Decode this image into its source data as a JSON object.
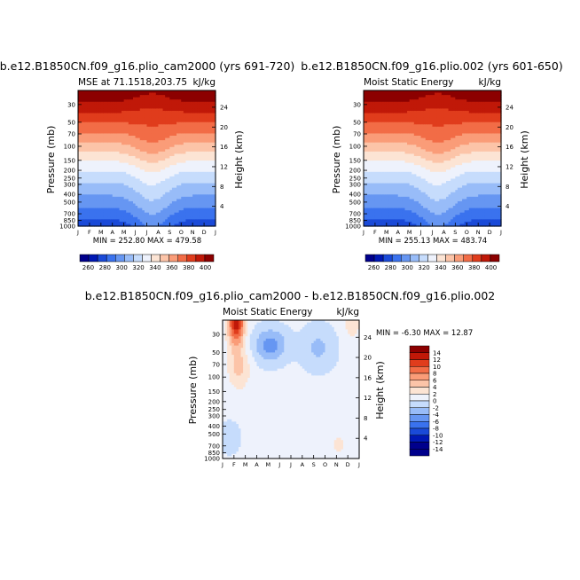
{
  "chart_data": [
    {
      "type": "heatmap",
      "title": "b.e12.B1850CN.f09_g16.plio_cam2000 (yrs 691-720)",
      "subtitle_left": "MSE at 71.1518,203.75",
      "units": "kJ/kg",
      "ylabel": "Pressure (mb)",
      "ylabel_right": "Height (km)",
      "xticks": [
        "J",
        "F",
        "M",
        "A",
        "M",
        "J",
        "J",
        "A",
        "S",
        "O",
        "N",
        "D",
        "J"
      ],
      "yticks": [
        30,
        50,
        70,
        100,
        150,
        200,
        250,
        300,
        400,
        500,
        700,
        850,
        1000
      ],
      "yticks_right": [
        4,
        8,
        12,
        16,
        20,
        24
      ],
      "ylim": [
        1000,
        20
      ],
      "stats": "MIN = 252.80  MAX = 479.58",
      "min": 252.8,
      "max": 479.58,
      "levels": [
        260,
        280,
        300,
        320,
        340,
        360,
        380,
        400
      ],
      "colorbar_labels": [
        "260",
        "280",
        "300",
        "320",
        "340",
        "360",
        "380",
        "400"
      ]
    },
    {
      "type": "heatmap",
      "title": "b.e12.B1850CN.f09_g16.plio.002 (yrs 601-650)",
      "subtitle_left": "Moist Static Energy",
      "units": "kJ/kg",
      "ylabel": "Pressure (mb)",
      "ylabel_right": "Height (km)",
      "xticks": [
        "J",
        "F",
        "M",
        "A",
        "M",
        "J",
        "J",
        "A",
        "S",
        "O",
        "N",
        "D",
        "J"
      ],
      "yticks": [
        30,
        50,
        70,
        100,
        150,
        200,
        250,
        300,
        400,
        500,
        700,
        850,
        1000
      ],
      "yticks_right": [
        4,
        8,
        12,
        16,
        20,
        24
      ],
      "ylim": [
        1000,
        20
      ],
      "stats": "MIN = 255.13  MAX = 483.74",
      "min": 255.13,
      "max": 483.74,
      "levels": [
        260,
        280,
        300,
        320,
        340,
        360,
        380,
        400
      ],
      "colorbar_labels": [
        "260",
        "280",
        "300",
        "320",
        "340",
        "360",
        "380",
        "400"
      ]
    },
    {
      "type": "heatmap",
      "title": "b.e12.B1850CN.f09_g16.plio_cam2000 - b.e12.B1850CN.f09_g16.plio.002",
      "subtitle_left": "Moist Static Energy",
      "units": "kJ/kg",
      "ylabel": "Pressure (mb)",
      "ylabel_right": "Height (km)",
      "xticks": [
        "J",
        "F",
        "M",
        "A",
        "M",
        "J",
        "J",
        "A",
        "S",
        "O",
        "N",
        "D",
        "J"
      ],
      "yticks": [
        30,
        50,
        70,
        100,
        150,
        200,
        250,
        300,
        400,
        500,
        700,
        850,
        1000
      ],
      "yticks_right": [
        4,
        8,
        12,
        16,
        20,
        24
      ],
      "ylim": [
        1000,
        20
      ],
      "stats": "MIN =  -6.30  MAX =  12.87",
      "min": -6.3,
      "max": 12.87,
      "levels": [
        -14,
        -12,
        -10,
        -8,
        -6,
        -4,
        -2,
        0,
        2,
        4,
        6,
        8,
        10,
        12,
        14
      ],
      "colorbar_labels": [
        "14",
        "12",
        "10",
        "8",
        "6",
        "4",
        "2",
        "0",
        "-2",
        "-4",
        "-6",
        "-8",
        "-10",
        "-12",
        "-14"
      ]
    }
  ],
  "colors": {
    "abs_fills": [
      "#00008c",
      "#0018b4",
      "#1a4ad8",
      "#3a72ee",
      "#6696f2",
      "#98bcf8",
      "#c6dcfc",
      "#eef2fc",
      "#fce4d4",
      "#fcc4a8",
      "#fa9c78",
      "#f26c46",
      "#e03c1c",
      "#c01808",
      "#8c0000"
    ],
    "diff_fills": [
      "#00008c",
      "#0018b4",
      "#1a4ad8",
      "#3a72ee",
      "#6696f2",
      "#98bcf8",
      "#c6dcfc",
      "#eef2fc",
      "#fce4d4",
      "#fcc4a8",
      "#fa9c78",
      "#f26c46",
      "#e03c1c",
      "#c01808",
      "#8c0000"
    ]
  }
}
